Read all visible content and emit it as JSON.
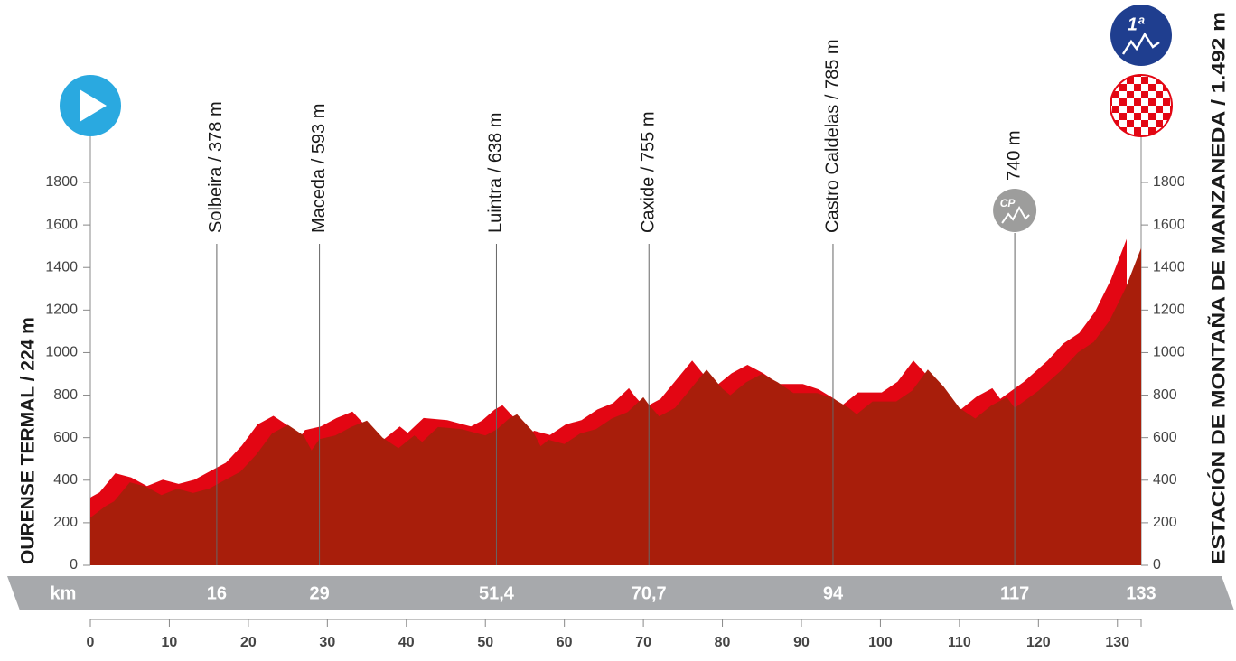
{
  "chart_data": {
    "type": "area",
    "start_label": "OURENSE TERMAL / 224 m",
    "finish_label": "ESTACIÓN DE MONTAÑA DE MANZANEDA / 1.492 m",
    "category_badge": "1ª",
    "checkpoint_badge": "CP",
    "km_label": "km",
    "finish_km": 133,
    "x": [
      0,
      2,
      3,
      5,
      7,
      9,
      11,
      13,
      15,
      17,
      19,
      21,
      23,
      25,
      27,
      28,
      29,
      31,
      33,
      35,
      37,
      39,
      41,
      42,
      44,
      47,
      50,
      51.4,
      53,
      54,
      56,
      57,
      58,
      60,
      62,
      64,
      66,
      68,
      70,
      70.7,
      72,
      74,
      76,
      78,
      80,
      81,
      83,
      85,
      87,
      89,
      92,
      94,
      96,
      97,
      99,
      102,
      104,
      106,
      108,
      110,
      112,
      114,
      116,
      117,
      120,
      123,
      125,
      127,
      129,
      131,
      133
    ],
    "values": [
      224,
      280,
      300,
      390,
      370,
      330,
      360,
      340,
      360,
      400,
      440,
      520,
      620,
      660,
      610,
      540,
      593,
      610,
      650,
      680,
      600,
      550,
      610,
      580,
      650,
      640,
      610,
      638,
      690,
      710,
      630,
      560,
      590,
      570,
      620,
      640,
      690,
      720,
      790,
      755,
      700,
      740,
      830,
      920,
      830,
      800,
      860,
      900,
      860,
      810,
      810,
      785,
      740,
      710,
      770,
      770,
      820,
      920,
      840,
      740,
      690,
      750,
      790,
      740,
      820,
      920,
      1000,
      1050,
      1150,
      1300,
      1492
    ],
    "color": "#a81e0b",
    "highlight_color": "#e30613",
    "xlim": [
      0,
      133
    ],
    "ylim": [
      0,
      1800
    ],
    "xticks": [
      0,
      10,
      20,
      30,
      40,
      50,
      60,
      70,
      80,
      90,
      100,
      110,
      120,
      130
    ],
    "yticks": [
      0,
      200,
      400,
      600,
      800,
      1000,
      1200,
      1400,
      1600,
      1800
    ],
    "waypoints": [
      {
        "km": 16,
        "name": "Solbeira / 378 m"
      },
      {
        "km": 29,
        "name": "Maceda / 593 m"
      },
      {
        "km": {
          "value": 51.4,
          "label": "51,4"
        },
        "name": "Luintra / 638 m"
      },
      {
        "km": {
          "value": 70.7,
          "label": "70,7"
        },
        "name": "Caxide / 755 m"
      },
      {
        "km": 94,
        "name": "Castro Caldelas / 785 m"
      },
      {
        "km": 117,
        "name": "740 m"
      }
    ]
  }
}
